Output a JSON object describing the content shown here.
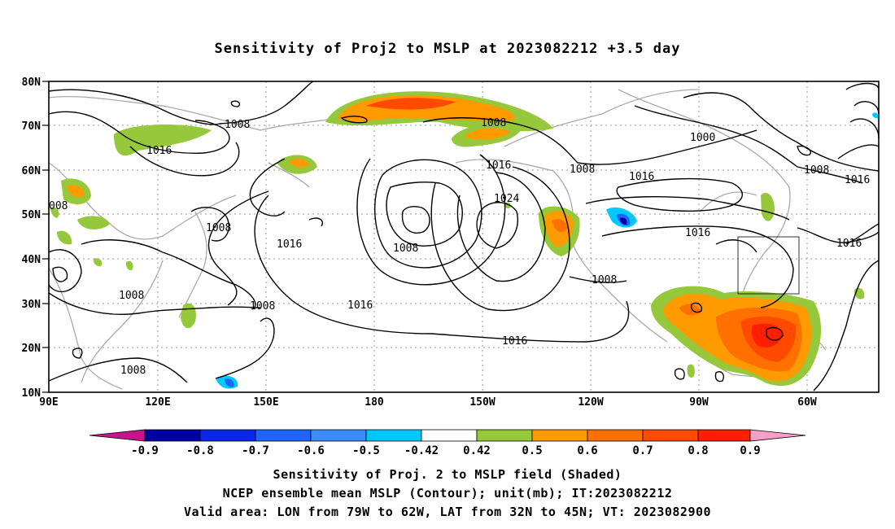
{
  "title": "Sensitivity of Proj2 to MSLP at 2023082212 +3.5 day",
  "map": {
    "lat_labels": [
      "80N",
      "70N",
      "60N",
      "50N",
      "40N",
      "30N",
      "20N",
      "10N"
    ],
    "lon_labels": [
      "90E",
      "120E",
      "150E",
      "180",
      "150W",
      "120W",
      "90W",
      "60W"
    ],
    "contour_labels": [
      {
        "text": "1008",
        "id": "c1"
      },
      {
        "text": "1016",
        "id": "c2"
      },
      {
        "text": "1008",
        "id": "c3"
      },
      {
        "text": "1016",
        "id": "c4"
      },
      {
        "text": "1024",
        "id": "c5"
      },
      {
        "text": "1008",
        "id": "c6"
      },
      {
        "text": "1016",
        "id": "c7"
      },
      {
        "text": "1000",
        "id": "c8"
      },
      {
        "text": "1008",
        "id": "c9"
      },
      {
        "text": "1016",
        "id": "c10"
      },
      {
        "text": "1016",
        "id": "c11"
      },
      {
        "text": "1016",
        "id": "c12"
      },
      {
        "text": "1008",
        "id": "c13"
      },
      {
        "text": "1008",
        "id": "c14"
      },
      {
        "text": "1016",
        "id": "c15"
      },
      {
        "text": "1008",
        "id": "c16"
      },
      {
        "text": "1016",
        "id": "c17"
      },
      {
        "text": "1008",
        "id": "c18"
      },
      {
        "text": "1008",
        "id": "c19"
      },
      {
        "text": "1008",
        "id": "c20"
      },
      {
        "text": "008",
        "id": "c21"
      },
      {
        "text": "1016",
        "id": "c22"
      },
      {
        "text": "1008",
        "id": "c23"
      }
    ],
    "valid_box": {
      "lon_from": "79W",
      "lon_to": "62W",
      "lat_from": "32N",
      "lat_to": "45N"
    }
  },
  "colorbar": {
    "labels": [
      "-0.9",
      "-0.8",
      "-0.7",
      "-0.6",
      "-0.5",
      "-0.42",
      "0.42",
      "0.5",
      "0.6",
      "0.7",
      "0.8",
      "0.9"
    ],
    "colors": [
      "#0000a0",
      "#0a28e6",
      "#1e64ff",
      "#3c8cff",
      "#00c8ff",
      "#ffffff",
      "#96c83c",
      "#ff9a00",
      "#ff7000",
      "#ff4a00",
      "#ff1e00"
    ],
    "low_color": "#c8148c",
    "high_color": "#f5a0c8"
  },
  "footer": {
    "line1": "Sensitivity of Proj. 2 to MSLP field (Shaded)",
    "line2": "NCEP ensemble mean MSLP (Contour); unit(mb); IT:2023082212",
    "line3": "Valid area: LON from 79W to 62W, LAT from 32N to 45N; VT: 2023082900"
  }
}
